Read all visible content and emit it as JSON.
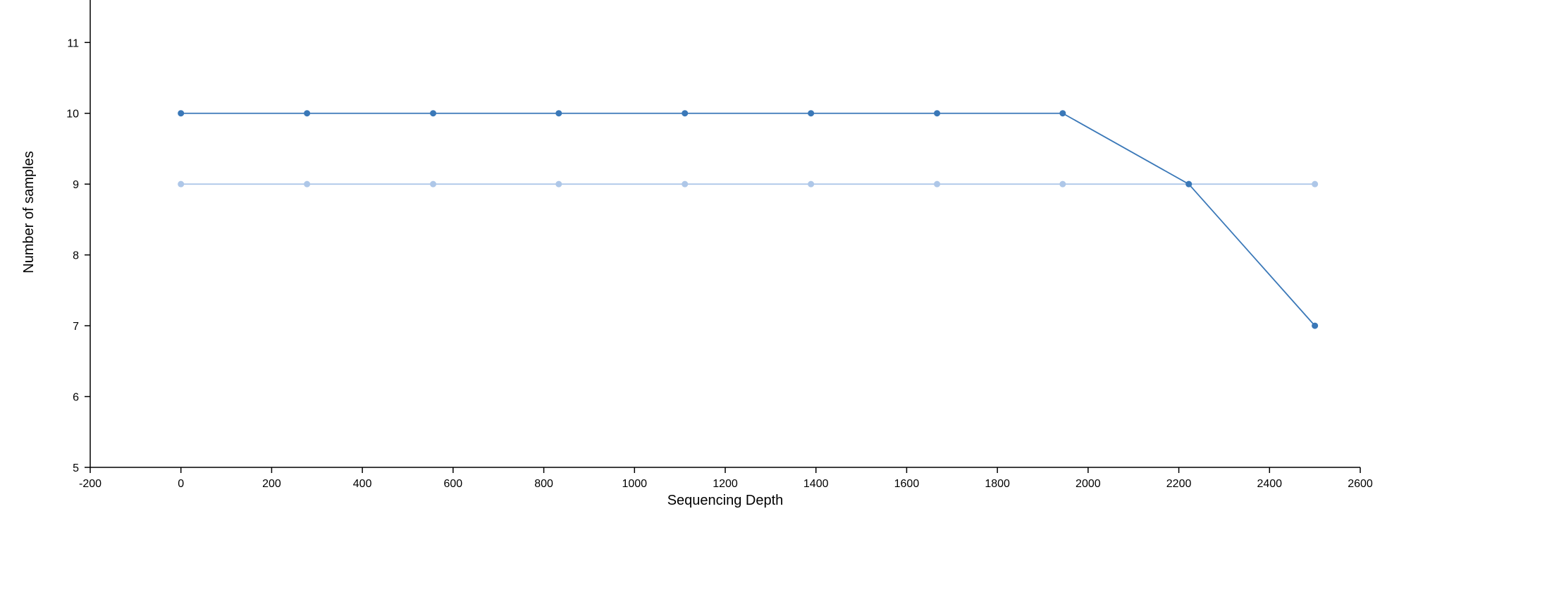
{
  "chart_data": {
    "type": "line",
    "title": "",
    "xlabel": "Sequencing Depth",
    "ylabel": "Number of samples",
    "xlim": [
      -200,
      2600
    ],
    "ylim": [
      5,
      11.6
    ],
    "x_ticks": [
      -200,
      0,
      200,
      400,
      600,
      800,
      1000,
      1200,
      1400,
      1600,
      1800,
      2000,
      2200,
      2400,
      2600
    ],
    "y_ticks": [
      5,
      6,
      7,
      8,
      9,
      10,
      11
    ],
    "grid": false,
    "legend": "none",
    "x": [
      0,
      278,
      556,
      833,
      1111,
      1389,
      1667,
      1944,
      2222,
      2500
    ],
    "series": [
      {
        "values": [
          10,
          10,
          10,
          10,
          10,
          10,
          10,
          10,
          9,
          7
        ],
        "color": "#3a78b8",
        "marker_color": "#3a78b8"
      },
      {
        "values": [
          9,
          9,
          9,
          9,
          9,
          9,
          9,
          9,
          9,
          9
        ],
        "color": "#aec7e8",
        "marker_color": "#aec7e8"
      }
    ]
  }
}
